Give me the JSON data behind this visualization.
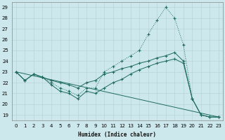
{
  "xlabel": "Humidex (Indice chaleur)",
  "bg_color": "#cde8ec",
  "grid_color": "#b8d4d8",
  "line_color": "#1e6b5e",
  "xlim": [
    -0.5,
    23.5
  ],
  "ylim": [
    18.5,
    29.5
  ],
  "xticks": [
    0,
    1,
    2,
    3,
    4,
    5,
    6,
    7,
    8,
    9,
    10,
    11,
    12,
    13,
    14,
    15,
    16,
    17,
    18,
    19,
    20,
    21,
    22,
    23
  ],
  "yticks": [
    19,
    20,
    21,
    22,
    23,
    24,
    25,
    26,
    27,
    28,
    29
  ],
  "line_dotted": {
    "x": [
      0,
      1,
      2,
      3,
      4,
      5,
      6,
      7,
      8,
      9,
      10,
      11,
      12,
      13,
      14,
      15,
      16,
      17,
      18,
      19,
      20,
      21,
      22,
      23
    ],
    "y": [
      23.0,
      22.2,
      22.8,
      22.5,
      22.0,
      21.5,
      21.2,
      20.8,
      21.5,
      21.5,
      23.0,
      23.5,
      24.0,
      24.5,
      25.0,
      26.5,
      27.8,
      29.0,
      28.0,
      25.5,
      20.5,
      19.0,
      18.8,
      18.8
    ]
  },
  "line_upper": {
    "x": [
      0,
      1,
      2,
      3,
      4,
      5,
      6,
      7,
      8,
      9,
      10,
      11,
      12,
      13,
      14,
      15,
      16,
      17,
      18,
      19,
      20,
      21,
      22,
      23
    ],
    "y": [
      23.0,
      22.2,
      22.8,
      22.5,
      22.2,
      22.0,
      21.8,
      21.5,
      22.0,
      22.2,
      22.8,
      23.0,
      23.3,
      23.5,
      23.8,
      24.0,
      24.3,
      24.5,
      24.8,
      24.0,
      20.5,
      19.0,
      18.8,
      18.8
    ]
  },
  "line_lower": {
    "x": [
      0,
      1,
      2,
      3,
      4,
      5,
      6,
      7,
      8,
      9,
      10,
      11,
      12,
      13,
      14,
      15,
      16,
      17,
      18,
      19,
      20,
      21,
      22,
      23
    ],
    "y": [
      23.0,
      22.2,
      22.8,
      22.5,
      21.8,
      21.2,
      21.0,
      20.5,
      21.2,
      21.0,
      21.5,
      22.0,
      22.3,
      22.8,
      23.2,
      23.5,
      23.8,
      24.0,
      24.2,
      23.8,
      20.5,
      19.0,
      18.8,
      18.8
    ]
  },
  "line_trend": {
    "x": [
      0,
      23
    ],
    "y": [
      23.0,
      18.8
    ]
  }
}
